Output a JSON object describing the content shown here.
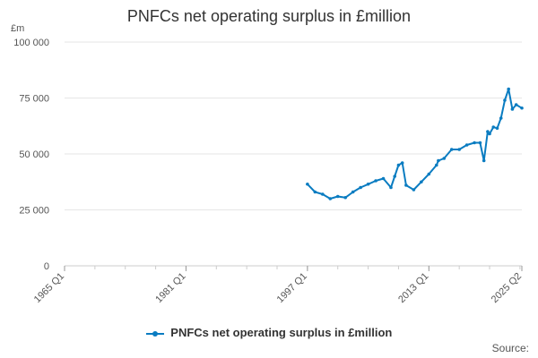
{
  "header": {
    "unit": "£m",
    "source_label": "Source:"
  },
  "colors": {
    "series": "#0a7cc1",
    "grid": "#e6e6e6",
    "axis": "#cccccc",
    "text": "#555555"
  },
  "chart_data": {
    "type": "line",
    "title": "PNFCs net operating surplus in £million",
    "xlabel": "",
    "ylabel": "£m",
    "ylim": [
      0,
      100000
    ],
    "y_ticks": [
      {
        "value": 0,
        "label": "0"
      },
      {
        "value": 25000,
        "label": "25 000"
      },
      {
        "value": 50000,
        "label": "50 000"
      },
      {
        "value": 75000,
        "label": "75 000"
      },
      {
        "value": 100000,
        "label": "100 000"
      }
    ],
    "x_ticks": [
      "1965 Q1",
      "1981 Q1",
      "1997 Q1",
      "2013 Q1",
      "2025 Q2"
    ],
    "x_range": [
      "1965 Q1",
      "2025 Q2"
    ],
    "grid": true,
    "legend": "bottom",
    "series": [
      {
        "name": "PNFCs net operating surplus in £million",
        "x": [
          "1997 Q1",
          "1998 Q1",
          "1999 Q1",
          "2000 Q1",
          "2001 Q1",
          "2002 Q1",
          "2003 Q1",
          "2004 Q1",
          "2005 Q1",
          "2006 Q1",
          "2007 Q1",
          "2008 Q1",
          "2008 Q3",
          "2009 Q1",
          "2009 Q3",
          "2010 Q1",
          "2011 Q1",
          "2012 Q1",
          "2013 Q1",
          "2014 Q1",
          "2014 Q2",
          "2015 Q1",
          "2016 Q1",
          "2017 Q1",
          "2018 Q1",
          "2019 Q1",
          "2019 Q4",
          "2020 Q2",
          "2020 Q4",
          "2021 Q1",
          "2021 Q3",
          "2022 Q1",
          "2022 Q3",
          "2023 Q1",
          "2023 Q3",
          "2024 Q1",
          "2024 Q3",
          "2025 Q2"
        ],
        "values": [
          36500,
          33000,
          32000,
          30000,
          31000,
          30500,
          33000,
          35000,
          36500,
          38000,
          39000,
          35000,
          40000,
          45000,
          46000,
          36000,
          34000,
          37500,
          41000,
          45000,
          47000,
          48000,
          52000,
          52000,
          54000,
          55000,
          55000,
          47000,
          60000,
          59000,
          62000,
          61500,
          66000,
          74000,
          79000,
          70000,
          72000,
          70500
        ]
      }
    ]
  }
}
